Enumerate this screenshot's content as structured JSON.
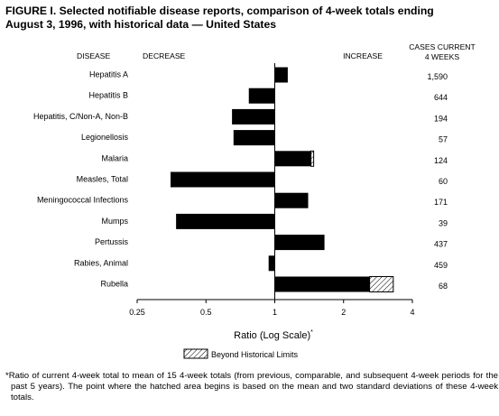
{
  "title_line1": "FIGURE I. Selected notifiable disease reports, comparison of 4-week totals ending",
  "title_line2": "August 3, 1996, with historical data — United States",
  "footnote": "*Ratio of current 4-week total to mean of 15 4-week totals (from previous, comparable, and subsequent 4-week periods for the past 5 years). The point where the hatched area begins is based on the mean and two standard deviations of these 4-week totals.",
  "legend": {
    "label": "Beyond Historical Limits"
  },
  "colors": {
    "bar": "#000000",
    "hatch": "#000000",
    "background": "#ffffff"
  },
  "chart_data": {
    "type": "bar",
    "orientation": "horizontal",
    "x_scale": "log",
    "xlim": [
      0.25,
      4
    ],
    "x_ticks": [
      0.25,
      0.5,
      1,
      2,
      4
    ],
    "x_tick_labels": [
      "0.25",
      "0.5",
      "1",
      "2",
      "4"
    ],
    "xlabel": "Ratio (Log Scale)",
    "xlabel_marker": "*",
    "header_left": "DISEASE",
    "header_decrease": "DECREASE",
    "header_increase": "INCREASE",
    "header_cases_line1": "CASES CURRENT",
    "header_cases_line2": "4 WEEKS",
    "categories": [
      "Hepatitis A",
      "Hepatitis B",
      "Hepatitis, C/Non-A, Non-B",
      "Legionellosis",
      "Malaria",
      "Measles, Total",
      "Meningococcal Infections",
      "Mumps",
      "Pertussis",
      "Rabies, Animal",
      "Rubella"
    ],
    "values": [
      1.14,
      0.77,
      0.65,
      0.66,
      1.48,
      0.35,
      1.4,
      0.37,
      1.65,
      0.94,
      3.3
    ],
    "beyond_limit_from": [
      null,
      null,
      null,
      null,
      1.44,
      null,
      null,
      null,
      null,
      null,
      2.6
    ],
    "cases": [
      "1,590",
      "644",
      "194",
      "57",
      "124",
      "60",
      "171",
      "39",
      "437",
      "459",
      "68"
    ]
  }
}
